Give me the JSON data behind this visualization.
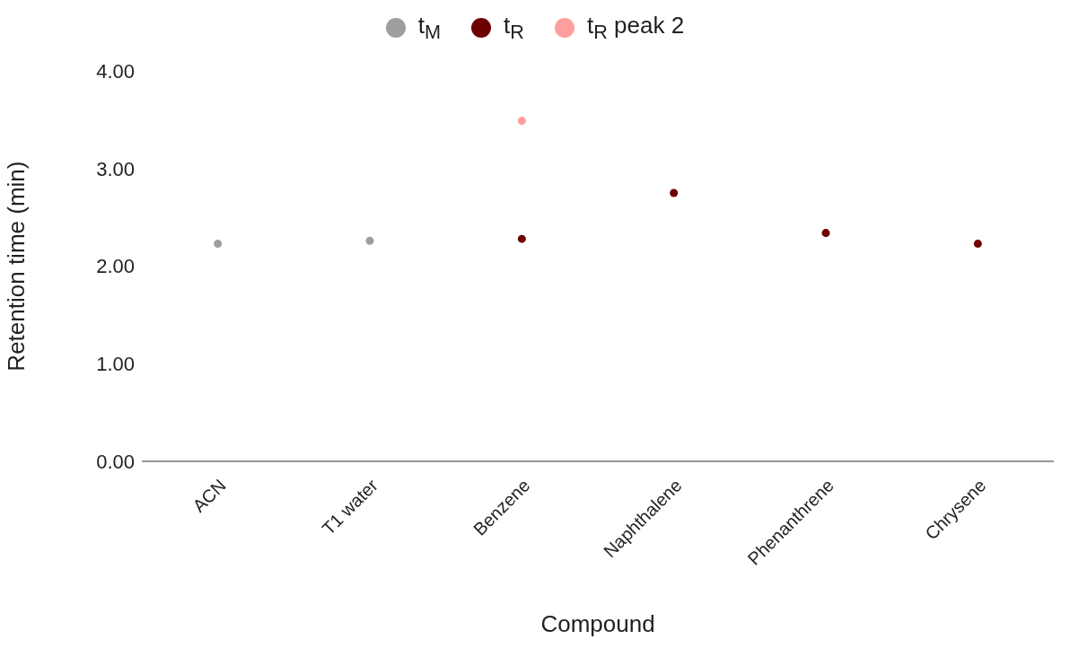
{
  "chart_data": {
    "type": "scatter",
    "xlabel": "Compound",
    "ylabel": "Retention time (min)",
    "categories": [
      "ACN",
      "T1 water",
      "Benzene",
      "Naphthalene",
      "Phenanthrene",
      "Chrysene"
    ],
    "series": [
      {
        "name": "t$_{M}$",
        "color": "#9e9e9e",
        "values": [
          2.23,
          2.26,
          null,
          null,
          null,
          null
        ]
      },
      {
        "name": "t$_{R}$",
        "color": "#6e0000",
        "values": [
          null,
          null,
          2.28,
          2.75,
          2.34,
          2.23
        ]
      },
      {
        "name": "t$_{R}$  peak 2",
        "color": "#ff9e9e",
        "values": [
          null,
          null,
          3.49,
          null,
          null,
          null
        ]
      }
    ],
    "ylim": [
      0,
      4
    ],
    "yticks": [
      {
        "value": 0,
        "label": "0.00"
      },
      {
        "value": 1,
        "label": "1.00"
      },
      {
        "value": 2,
        "label": "2.00"
      },
      {
        "value": 3,
        "label": "3.00"
      },
      {
        "value": 4,
        "label": "4.00"
      }
    ],
    "legend": "top",
    "marker": "circle"
  }
}
